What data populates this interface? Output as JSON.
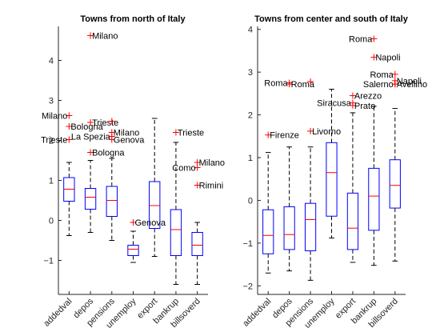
{
  "colors": {
    "box": "#0000ff",
    "median": "#ff0000",
    "whisker": "#000000",
    "outlier": "#ff0000",
    "axis": "#262626"
  },
  "chart_data": [
    {
      "type": "boxplot",
      "title": "Towns from north of Italy",
      "categories": [
        "addedval",
        "depos",
        "pensions",
        "unemploy",
        "export",
        "bankrup",
        "billsoverd"
      ],
      "ylim": [
        -1.85,
        4.85
      ],
      "yticks": [
        -1,
        0,
        1,
        2,
        3,
        4
      ],
      "grid": false,
      "boxes": [
        {
          "q1": 0.48,
          "median": 0.78,
          "q3": 1.07,
          "whisker_low": -0.38,
          "whisker_high": 1.45
        },
        {
          "q1": 0.28,
          "median": 0.58,
          "q3": 0.8,
          "whisker_low": -0.3,
          "whisker_high": 1.5
        },
        {
          "q1": 0.1,
          "median": 0.5,
          "q3": 0.85,
          "whisker_low": -0.5,
          "whisker_high": 1.55
        },
        {
          "q1": -0.88,
          "median": -0.72,
          "q3": -0.62,
          "whisker_low": -1.05,
          "whisker_high": -0.27
        },
        {
          "q1": -0.2,
          "median": 0.37,
          "q3": 0.97,
          "whisker_low": -0.9,
          "whisker_high": 2.55
        },
        {
          "q1": -0.88,
          "median": -0.23,
          "q3": 0.27,
          "whisker_low": -1.6,
          "whisker_high": 1.95
        },
        {
          "q1": -0.88,
          "median": -0.62,
          "q3": -0.3,
          "whisker_low": -1.6,
          "whisker_high": -0.05
        }
      ],
      "outliers": [
        {
          "cat": 0,
          "y": 2.62,
          "label": "Milano",
          "side": "left"
        },
        {
          "cat": 0,
          "y": 2.35,
          "label": "Bologna",
          "side": "right"
        },
        {
          "cat": 0,
          "y": 2.02,
          "label": "Trieste",
          "side": "left"
        },
        {
          "cat": 1,
          "y": 4.62,
          "label": "Milano",
          "side": "right"
        },
        {
          "cat": 1,
          "y": 2.45,
          "label": "Trieste",
          "side": "right"
        },
        {
          "cat": 1,
          "y": 1.7,
          "label": "Bologna",
          "side": "right"
        },
        {
          "cat": 2,
          "y": 2.48,
          "label": "",
          "side": "right"
        },
        {
          "cat": 2,
          "y": 2.2,
          "label": "Milano",
          "side": "right"
        },
        {
          "cat": 2,
          "y": 2.1,
          "label": "La Spezia",
          "side": "left"
        },
        {
          "cat": 2,
          "y": 2.02,
          "label": "Genova",
          "side": "right"
        },
        {
          "cat": 3,
          "y": -0.05,
          "label": "Genova",
          "side": "right"
        },
        {
          "cat": 5,
          "y": 2.2,
          "label": "Trieste",
          "side": "right"
        },
        {
          "cat": 6,
          "y": 1.45,
          "label": "Milano",
          "side": "right"
        },
        {
          "cat": 6,
          "y": 1.32,
          "label": "Como",
          "side": "left"
        },
        {
          "cat": 6,
          "y": 0.88,
          "label": "Rimini",
          "side": "right"
        }
      ]
    },
    {
      "type": "boxplot",
      "title": "Towns from center and south of Italy",
      "categories": [
        "addedval",
        "depos",
        "pensions",
        "unemploy",
        "export",
        "bankrup",
        "billsoverd"
      ],
      "ylim": [
        -2.2,
        4.07
      ],
      "yticks": [
        -2,
        -1,
        0,
        1,
        2,
        3,
        4
      ],
      "grid": false,
      "boxes": [
        {
          "q1": -1.25,
          "median": -0.82,
          "q3": -0.22,
          "whisker_low": -1.7,
          "whisker_high": 1.12
        },
        {
          "q1": -1.15,
          "median": -0.8,
          "q3": -0.15,
          "whisker_low": -1.65,
          "whisker_high": 1.25
        },
        {
          "q1": -1.18,
          "median": -0.45,
          "q3": -0.07,
          "whisker_low": -1.87,
          "whisker_high": 1.25
        },
        {
          "q1": -0.37,
          "median": 0.65,
          "q3": 1.35,
          "whisker_low": -0.88,
          "whisker_high": 2.6
        },
        {
          "q1": -1.15,
          "median": -0.65,
          "q3": 0.17,
          "whisker_low": -1.45,
          "whisker_high": 2.05
        },
        {
          "q1": -0.7,
          "median": 0.1,
          "q3": 0.75,
          "whisker_low": -1.52,
          "whisker_high": 2.2
        },
        {
          "q1": -0.18,
          "median": 0.35,
          "q3": 0.95,
          "whisker_low": -1.42,
          "whisker_high": 2.15
        }
      ],
      "outliers": [
        {
          "cat": 0,
          "y": 1.53,
          "label": "Firenze",
          "side": "right"
        },
        {
          "cat": 1,
          "y": 2.75,
          "label": "Roma",
          "side": "left"
        },
        {
          "cat": 1,
          "y": 2.72,
          "label": "Roma",
          "side": "right"
        },
        {
          "cat": 2,
          "y": 2.78,
          "label": "",
          "side": "right"
        },
        {
          "cat": 2,
          "y": 1.62,
          "label": "Livorno",
          "side": "right"
        },
        {
          "cat": 4,
          "y": 2.45,
          "label": "Arezzo",
          "side": "right"
        },
        {
          "cat": 4,
          "y": 2.28,
          "label": "Siracusa",
          "side": "left"
        },
        {
          "cat": 4,
          "y": 2.22,
          "label": "Prato",
          "side": "right"
        },
        {
          "cat": 5,
          "y": 3.78,
          "label": "Roma",
          "side": "left"
        },
        {
          "cat": 5,
          "y": 3.35,
          "label": "Napoli",
          "side": "right"
        },
        {
          "cat": 6,
          "y": 2.95,
          "label": "Roma",
          "side": "left"
        },
        {
          "cat": 6,
          "y": 2.8,
          "label": "Napoli",
          "side": "right"
        },
        {
          "cat": 6,
          "y": 2.72,
          "label": "Salerno",
          "side": "left"
        },
        {
          "cat": 6,
          "y": 2.72,
          "label": "Avellino",
          "side": "right"
        }
      ]
    }
  ]
}
